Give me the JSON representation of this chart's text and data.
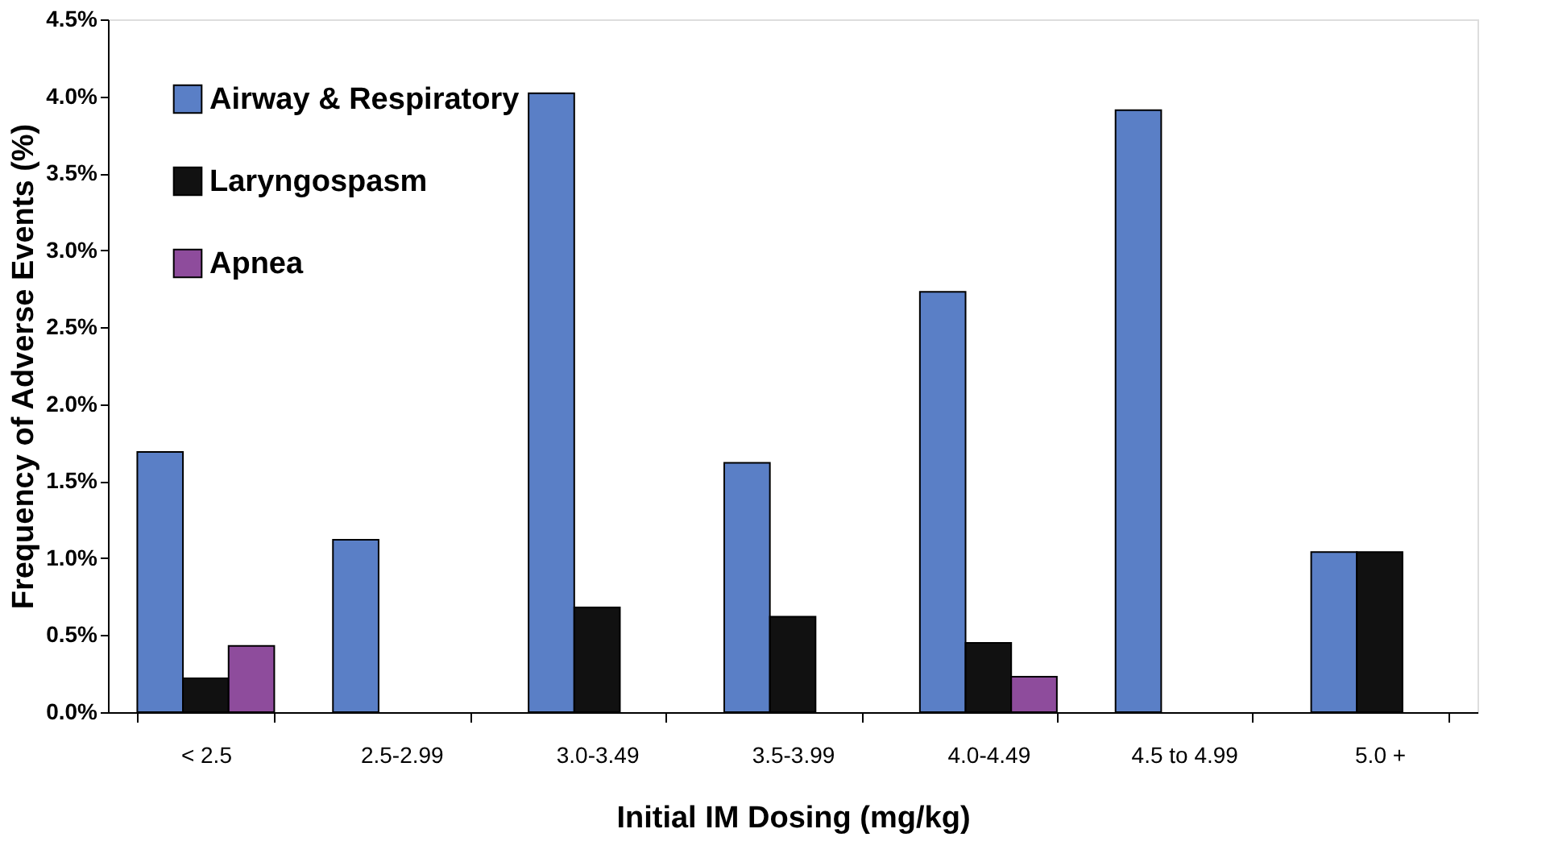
{
  "chart_data": {
    "type": "bar",
    "xlabel": "Initial IM Dosing (mg/kg)",
    "ylabel": "Frequency of Adverse Events (%)",
    "categories": [
      "< 2.5",
      "2.5-2.99",
      "3.0-3.49",
      "3.5-3.99",
      "4.0-4.49",
      "4.5 to 4.99",
      "5.0 +"
    ],
    "series": [
      {
        "name": "Airway & Respiratory",
        "color": "#5a7fc6",
        "values": [
          1.69,
          1.12,
          4.02,
          1.62,
          2.73,
          3.91,
          1.04
        ]
      },
      {
        "name": "Laryngospasm",
        "color": "#111111",
        "values": [
          0.22,
          null,
          0.68,
          0.62,
          0.45,
          null,
          1.04
        ]
      },
      {
        "name": "Apnea",
        "color": "#8e4c9c",
        "values": [
          0.43,
          null,
          null,
          null,
          0.23,
          null,
          null
        ]
      }
    ],
    "ylim": [
      0,
      4.5
    ],
    "yticks": [
      {
        "value": 0,
        "label": "0.0%"
      },
      {
        "value": 0.5,
        "label": "0.5%"
      },
      {
        "value": 1,
        "label": "1.0%"
      },
      {
        "value": 1.5,
        "label": "1.5%"
      },
      {
        "value": 2,
        "label": "2.0%"
      },
      {
        "value": 2.5,
        "label": "2.5%"
      },
      {
        "value": 3,
        "label": "3.0%"
      },
      {
        "value": 3.5,
        "label": "3.5%"
      },
      {
        "value": 4,
        "label": "4.0%"
      },
      {
        "value": 4.5,
        "label": "4.5%"
      }
    ],
    "grid": false,
    "legend": "top left"
  }
}
